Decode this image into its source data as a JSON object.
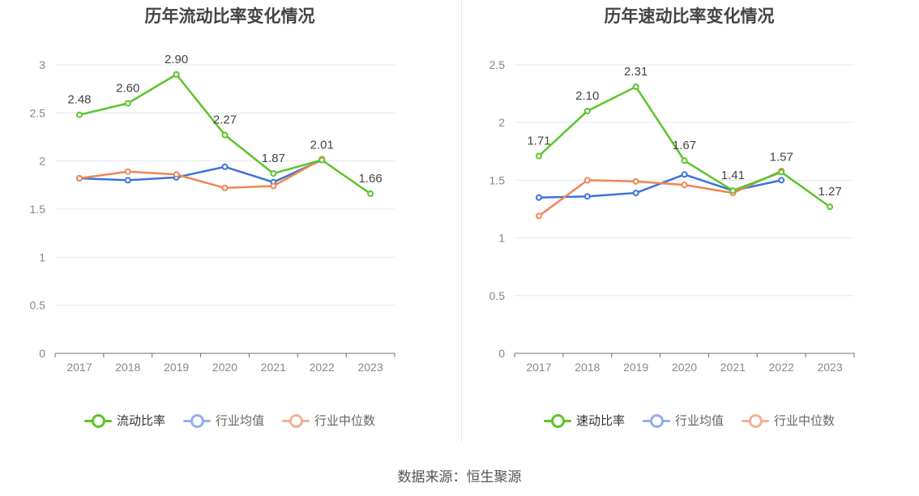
{
  "chart_data": [
    {
      "type": "line",
      "title": "历年流动比率变化情况",
      "categories": [
        "2017",
        "2018",
        "2019",
        "2020",
        "2021",
        "2022",
        "2023"
      ],
      "ylim": [
        0,
        3
      ],
      "yticks": [
        "0",
        "0.5",
        "1",
        "1.5",
        "2",
        "2.5",
        "3"
      ],
      "grid": true,
      "legend_position": "bottom",
      "series": [
        {
          "name": "流动比率",
          "color": "#5cc42b",
          "values": [
            2.48,
            2.6,
            2.9,
            2.27,
            1.87,
            2.01,
            1.66
          ],
          "labels": [
            "2.48",
            "2.60",
            "2.90",
            "2.27",
            "1.87",
            "2.01",
            "1.66"
          ]
        },
        {
          "name": "行业均值",
          "color": "#3b73d9",
          "values": [
            1.82,
            1.8,
            1.83,
            1.94,
            1.78,
            2.01,
            null
          ]
        },
        {
          "name": "行业中位数",
          "color": "#ee8654",
          "values": [
            1.82,
            1.89,
            1.86,
            1.72,
            1.74,
            2.02,
            null
          ]
        }
      ]
    },
    {
      "type": "line",
      "title": "历年速动比率变化情况",
      "categories": [
        "2017",
        "2018",
        "2019",
        "2020",
        "2021",
        "2022",
        "2023"
      ],
      "ylim": [
        0,
        2.5
      ],
      "yticks": [
        "0",
        "0.5",
        "1",
        "1.5",
        "2",
        "2.5"
      ],
      "grid": true,
      "legend_position": "bottom",
      "series": [
        {
          "name": "速动比率",
          "color": "#5cc42b",
          "values": [
            1.71,
            2.1,
            2.31,
            1.67,
            1.41,
            1.57,
            1.27
          ],
          "labels": [
            "1.71",
            "2.10",
            "2.31",
            "1.67",
            "1.41",
            "1.57",
            "1.27"
          ]
        },
        {
          "name": "行业均值",
          "color": "#3b73d9",
          "values": [
            1.35,
            1.36,
            1.39,
            1.55,
            1.41,
            1.5,
            null
          ]
        },
        {
          "name": "行业中位数",
          "color": "#ee8654",
          "values": [
            1.19,
            1.5,
            1.49,
            1.46,
            1.39,
            1.58,
            null
          ]
        }
      ]
    }
  ],
  "legend_colors": {
    "main": "#5cc42b",
    "avg": "#8fb0ec",
    "median": "#f5ae96"
  },
  "source": "数据来源：恒生聚源"
}
